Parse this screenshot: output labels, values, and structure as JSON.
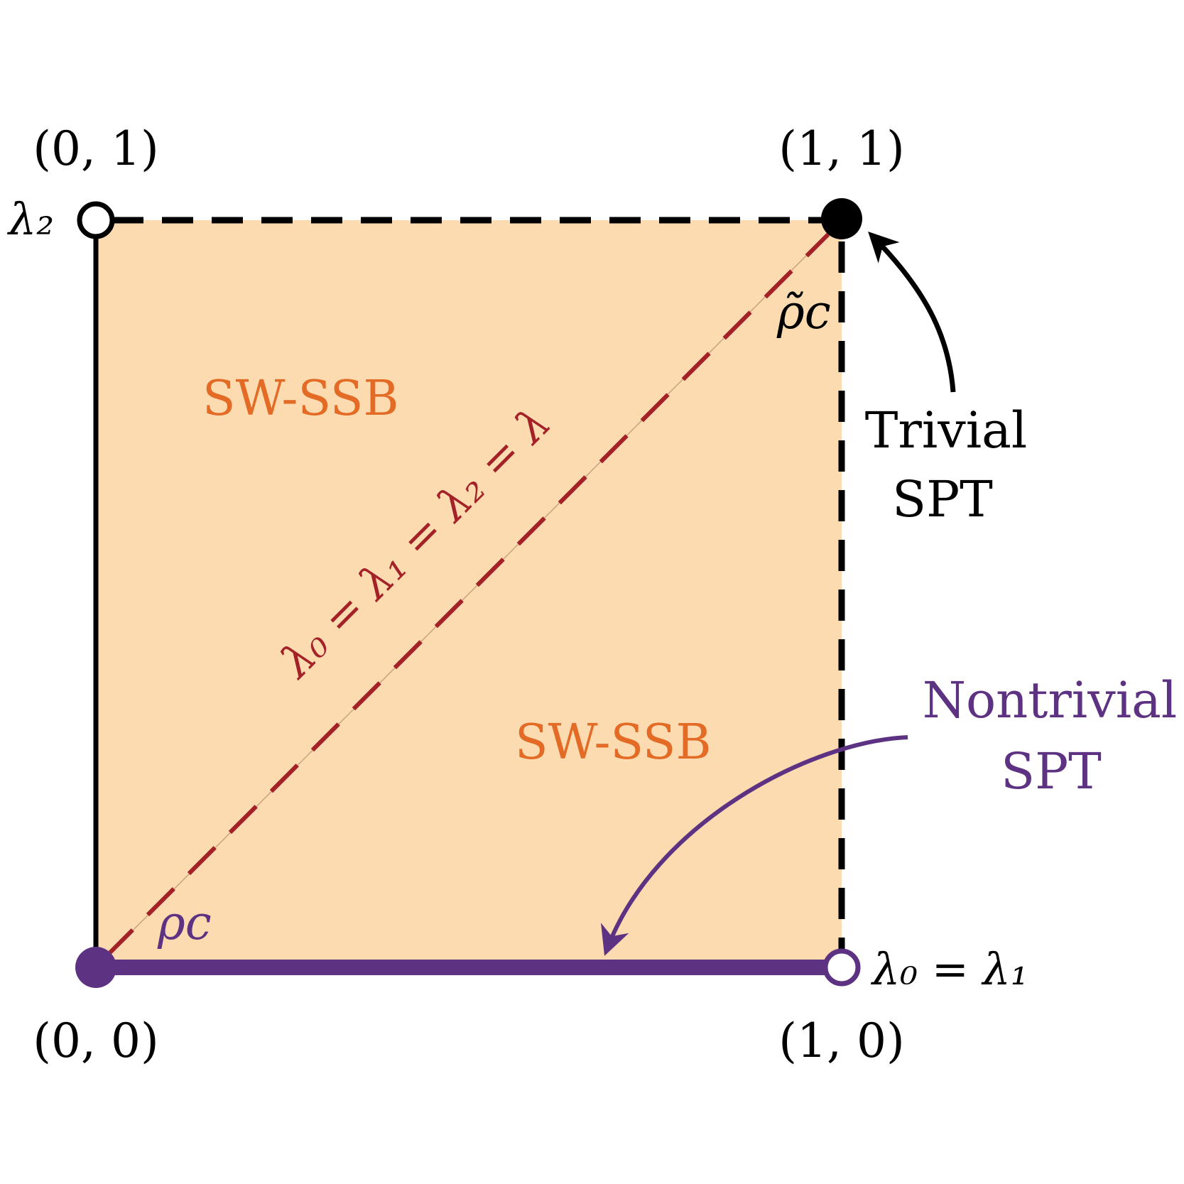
{
  "corners": {
    "top_left": "(0, 1)",
    "top_right": "(1, 1)",
    "bottom_left": "(0, 0)",
    "bottom_right": "(1, 0)"
  },
  "axes": {
    "vertical_label": "λ₂",
    "horizontal_label": "λ₀ = λ₁"
  },
  "regions": {
    "upper": "SW-SSB",
    "lower": "SW-SSB"
  },
  "diagonal_label": "λ₀ = λ₁ = λ₂ = λ",
  "critical_points": {
    "top": "ρ̃c",
    "bottom": "ρc"
  },
  "phases": {
    "trivial": {
      "line1": "Trivial",
      "line2": "SPT"
    },
    "nontrivial": {
      "line1": "Nontrivial",
      "line2": "SPT"
    }
  },
  "colors": {
    "region_fill": "#fcdbb0",
    "region_text": "#e36b26",
    "diagonal": "#a32127",
    "nontrivial": "#5e3282",
    "edge": "#000000"
  }
}
